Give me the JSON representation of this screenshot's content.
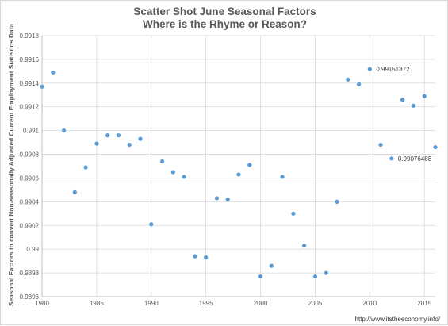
{
  "chart_data": {
    "type": "scatter",
    "title": "Scatter Shot June Seasonal Factors",
    "subtitle": "Where is the Rhyme or Reason?",
    "xlabel": "",
    "ylabel": "Seasonal Factors to convert Non-seasonally Adjusted Current Employment Statistics Data",
    "xlim": [
      1980,
      2016
    ],
    "ylim": [
      0.9896,
      0.9918
    ],
    "x_ticks": [
      "1980",
      "1985",
      "1990",
      "1995",
      "2000",
      "2005",
      "2010",
      "2015"
    ],
    "y_ticks": [
      "0.9896",
      "0.9898",
      "0.99",
      "0.9902",
      "0.9904",
      "0.9906",
      "0.9908",
      "0.991",
      "0.9912",
      "0.9914",
      "0.9916",
      "0.9918"
    ],
    "grid": true,
    "legend": "none",
    "marker_color": "#5b9bd5",
    "points": [
      {
        "x": 1980,
        "y": 0.99137
      },
      {
        "x": 1981,
        "y": 0.99149
      },
      {
        "x": 1982,
        "y": 0.991
      },
      {
        "x": 1983,
        "y": 0.99048
      },
      {
        "x": 1984,
        "y": 0.99069
      },
      {
        "x": 1985,
        "y": 0.99089
      },
      {
        "x": 1986,
        "y": 0.99096
      },
      {
        "x": 1987,
        "y": 0.99096
      },
      {
        "x": 1988,
        "y": 0.99088
      },
      {
        "x": 1989,
        "y": 0.99093
      },
      {
        "x": 1990,
        "y": 0.99021
      },
      {
        "x": 1991,
        "y": 0.99074
      },
      {
        "x": 1992,
        "y": 0.99065
      },
      {
        "x": 1993,
        "y": 0.99061
      },
      {
        "x": 1994,
        "y": 0.98994
      },
      {
        "x": 1995,
        "y": 0.98993
      },
      {
        "x": 1996,
        "y": 0.99043
      },
      {
        "x": 1997,
        "y": 0.99042
      },
      {
        "x": 1998,
        "y": 0.99063
      },
      {
        "x": 1999,
        "y": 0.99071
      },
      {
        "x": 2000,
        "y": 0.98977
      },
      {
        "x": 2001,
        "y": 0.98986
      },
      {
        "x": 2002,
        "y": 0.99061
      },
      {
        "x": 2003,
        "y": 0.9903
      },
      {
        "x": 2004,
        "y": 0.99003
      },
      {
        "x": 2005,
        "y": 0.98977
      },
      {
        "x": 2006,
        "y": 0.9898
      },
      {
        "x": 2007,
        "y": 0.9904
      },
      {
        "x": 2008,
        "y": 0.99143
      },
      {
        "x": 2009,
        "y": 0.99139
      },
      {
        "x": 2010,
        "y": 0.99151872,
        "label": "0.99151872"
      },
      {
        "x": 2011,
        "y": 0.99088
      },
      {
        "x": 2012,
        "y": 0.99076488,
        "label": "0.99076488"
      },
      {
        "x": 2013,
        "y": 0.99126
      },
      {
        "x": 2014,
        "y": 0.99121
      },
      {
        "x": 2015,
        "y": 0.99129
      },
      {
        "x": 2016,
        "y": 0.99086
      }
    ]
  },
  "footer": {
    "source": "http://www.itstheeconomy.info/"
  }
}
